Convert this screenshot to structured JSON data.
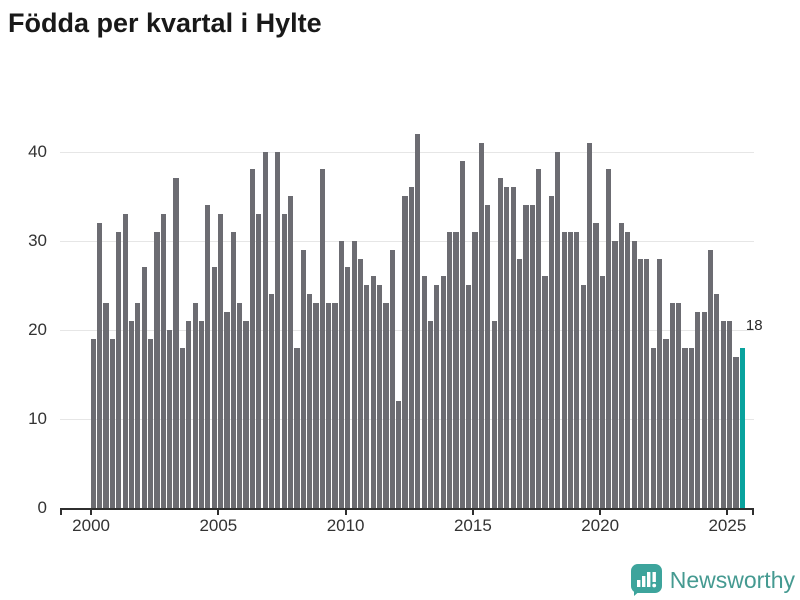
{
  "title": "Födda per kvartal i Hylte",
  "annotation": {
    "last_value_label": "18"
  },
  "branding": {
    "name": "Newsworthy",
    "icon": "newsworthy-speech-bubble-bar-chart-icon"
  },
  "colors": {
    "bar": "#6C6C72",
    "highlight": "#09A29D",
    "grid": "#E6E6E6",
    "axis": "#2F2F2F",
    "tick_text": "#333333",
    "title_text": "#191919",
    "annotation_text": "#2B2B2B",
    "brand_text": "#459A91",
    "brand_badge": "#3DA49C"
  },
  "chart_data": {
    "type": "bar",
    "title": "Födda per kvartal i Hylte",
    "x_start": "2000 Q1",
    "x_end": "2025 Q3",
    "frequency": "quarterly",
    "x_tick_years": [
      2000,
      2005,
      2010,
      2015,
      2020,
      2025
    ],
    "y_ticks": [
      0,
      10,
      20,
      30,
      40
    ],
    "ylim": [
      0,
      42
    ],
    "grid": "horizontal",
    "legend": "none",
    "values": [
      19,
      32,
      23,
      19,
      31,
      33,
      21,
      23,
      27,
      19,
      31,
      33,
      20,
      37,
      18,
      21,
      23,
      21,
      34,
      27,
      33,
      22,
      31,
      23,
      21,
      38,
      33,
      40,
      24,
      40,
      33,
      35,
      18,
      29,
      24,
      23,
      38,
      23,
      23,
      30,
      27,
      30,
      28,
      25,
      26,
      25,
      23,
      29,
      12,
      35,
      36,
      42,
      26,
      21,
      25,
      26,
      31,
      31,
      39,
      25,
      31,
      41,
      34,
      21,
      37,
      36,
      36,
      28,
      34,
      34,
      38,
      26,
      35,
      40,
      31,
      31,
      31,
      25,
      41,
      32,
      26,
      38,
      30,
      32,
      31,
      30,
      28,
      28,
      18,
      28,
      19,
      23,
      23,
      18,
      18,
      22,
      22,
      29,
      24,
      21,
      21,
      17,
      18
    ],
    "highlight_index": 102,
    "highlight_label": "18"
  }
}
